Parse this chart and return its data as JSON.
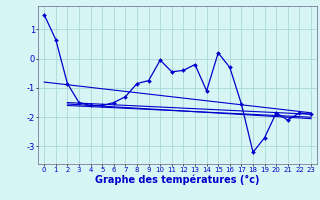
{
  "bg_color": "#d8f5f5",
  "grid_color": "#aad8d8",
  "line_color": "#0000cc",
  "xlabel": "Graphe des températures (°c)",
  "xlabel_fontsize": 7,
  "ylim": [
    -3.6,
    1.8
  ],
  "xlim": [
    -0.5,
    23.5
  ],
  "yticks": [
    -3,
    -2,
    -1,
    0,
    1
  ],
  "xticks": [
    0,
    1,
    2,
    3,
    4,
    5,
    6,
    7,
    8,
    9,
    10,
    11,
    12,
    13,
    14,
    15,
    16,
    17,
    18,
    19,
    20,
    21,
    22,
    23
  ],
  "main_line_x": [
    0,
    1,
    2,
    3,
    4,
    5,
    6,
    7,
    8,
    9,
    10,
    11,
    12,
    13,
    14,
    15,
    16,
    17,
    18,
    19,
    20,
    21,
    22,
    23
  ],
  "main_line_y": [
    1.5,
    0.65,
    -0.85,
    -1.5,
    -1.6,
    -1.6,
    -1.5,
    -1.3,
    -0.85,
    -0.75,
    -0.05,
    -0.45,
    -0.4,
    -0.2,
    -1.1,
    0.2,
    -0.3,
    -1.55,
    -3.2,
    -2.7,
    -1.85,
    -2.1,
    -1.85,
    -1.9
  ],
  "trend1_x": [
    0,
    23
  ],
  "trend1_y": [
    -0.8,
    -1.85
  ],
  "trend2_x": [
    2,
    23
  ],
  "trend2_y": [
    -1.5,
    -1.9
  ],
  "trend3_x": [
    2,
    23
  ],
  "trend3_y": [
    -1.6,
    -2.0
  ],
  "trend4_x": [
    2,
    23
  ],
  "trend4_y": [
    -1.55,
    -2.05
  ]
}
